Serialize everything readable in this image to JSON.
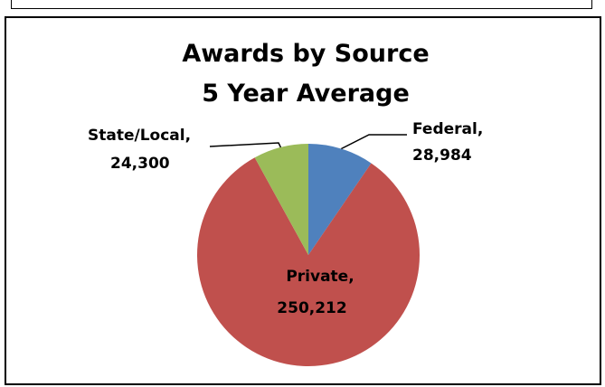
{
  "chart_data": {
    "type": "pie",
    "title": [
      "Awards by Source",
      "5 Year Average"
    ],
    "slices": [
      {
        "label": "Federal",
        "value": 28984,
        "display": "28,984",
        "color": "#4F81BD"
      },
      {
        "label": "Private",
        "value": 250212,
        "display": "250,212",
        "color": "#C0504D"
      },
      {
        "label": "State/Local",
        "value": 24300,
        "display": "24,300",
        "color": "#9BBB59"
      }
    ],
    "legend": "none",
    "data_labels": "category-and-value"
  }
}
